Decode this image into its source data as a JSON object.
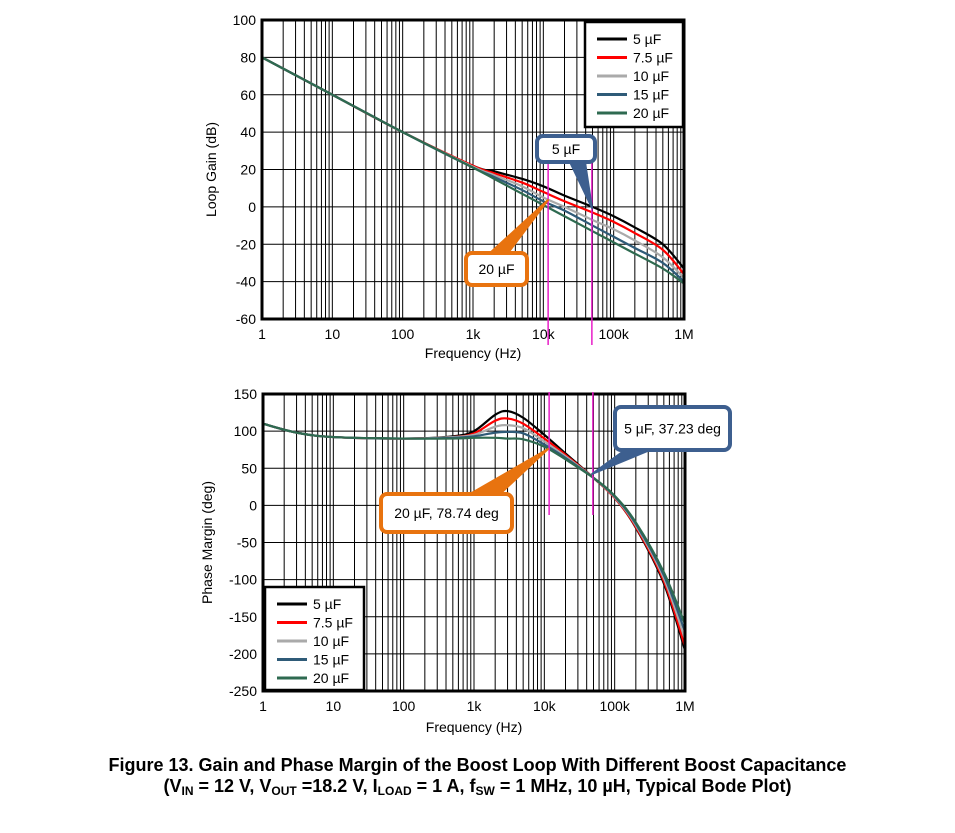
{
  "chart_data": [
    {
      "type": "line",
      "title": "Loop Gain",
      "xlabel": "Frequency (Hz)",
      "ylabel": "Loop Gain (dB)",
      "xscale": "log",
      "xlim": [
        1,
        1000000
      ],
      "ylim": [
        -60,
        100
      ],
      "xticks": [
        1,
        10,
        100,
        1000,
        10000,
        100000,
        1000000
      ],
      "xtick_labels": [
        "1",
        "10",
        "100",
        "1k",
        "10k",
        "100k",
        "1M"
      ],
      "yticks": [
        100,
        80,
        60,
        40,
        20,
        0,
        -20,
        -40,
        -60
      ],
      "ytick_labels": [
        "100",
        "80",
        "60",
        "40",
        "20",
        "0",
        "-20",
        "-40",
        "-60"
      ],
      "grid": true,
      "legend_position": "top-right",
      "x": [
        1,
        10,
        100,
        1000,
        2000,
        5000,
        10000,
        20000,
        50000,
        100000,
        200000,
        500000,
        1000000
      ],
      "series": [
        {
          "name": "5 µF",
          "color": "#000000",
          "values": [
            80,
            60,
            40,
            22,
            19,
            15,
            11,
            6,
            0,
            -5,
            -11,
            -20,
            -33
          ]
        },
        {
          "name": "7.5 µF",
          "color": "#ff0000",
          "values": [
            80,
            60,
            40,
            22,
            18,
            13,
            8,
            3,
            -3,
            -8,
            -14,
            -23,
            -36
          ]
        },
        {
          "name": "10 µF",
          "color": "#aaaaaa",
          "values": [
            80,
            60,
            40,
            21.5,
            17,
            11,
            5,
            0,
            -7,
            -12,
            -18,
            -27,
            -38
          ]
        },
        {
          "name": "15 µF",
          "color": "#2f5b78",
          "values": [
            80,
            60,
            40,
            21,
            16,
            9,
            3,
            -2,
            -10,
            -16,
            -22,
            -30,
            -40
          ]
        },
        {
          "name": "20 µF",
          "color": "#2e6a50",
          "values": [
            80,
            60,
            40,
            21,
            15,
            7,
            1,
            -5,
            -13,
            -19,
            -25,
            -33,
            -41
          ]
        }
      ],
      "markers": [
        11700,
        49000
      ],
      "annotations": [
        {
          "text": "5 µF",
          "x": 49000,
          "y": 0,
          "color": "#3d5f8f"
        },
        {
          "text": "20 µF",
          "x": 11700,
          "y": 4,
          "color": "#e8730f"
        }
      ]
    },
    {
      "type": "line",
      "title": "Phase Margin",
      "xlabel": "Frequency (Hz)",
      "ylabel": "Phase Margin (deg)",
      "xscale": "log",
      "xlim": [
        1,
        1000000
      ],
      "ylim": [
        -250,
        150
      ],
      "xticks": [
        1,
        10,
        100,
        1000,
        10000,
        100000,
        1000000
      ],
      "xtick_labels": [
        "1",
        "10",
        "100",
        "1k",
        "10k",
        "100k",
        "1M"
      ],
      "yticks": [
        150,
        100,
        50,
        0,
        -50,
        -100,
        -150,
        -200,
        -250
      ],
      "ytick_labels": [
        "150",
        "100",
        "50",
        "0",
        "-50",
        "-100",
        "-150",
        "-200",
        "-250"
      ],
      "grid": true,
      "legend_position": "bottom-left",
      "x": [
        1,
        3,
        10,
        100,
        500,
        1000,
        2000,
        3000,
        5000,
        10000,
        20000,
        50000,
        100000,
        200000,
        500000,
        1000000
      ],
      "series": [
        {
          "name": "5 µF",
          "color": "#000000",
          "values": [
            110,
            98,
            92,
            90,
            93,
            100,
            122,
            127,
            118,
            95,
            70,
            37,
            10,
            -30,
            -105,
            -195
          ]
        },
        {
          "name": "7.5 µF",
          "color": "#ff0000",
          "values": [
            110,
            98,
            92,
            90,
            92,
            97,
            114,
            117,
            110,
            90,
            68,
            37,
            10,
            -29,
            -102,
            -190
          ]
        },
        {
          "name": "10 µF",
          "color": "#aaaaaa",
          "values": [
            110,
            98,
            92,
            90,
            92,
            95,
            106,
            108,
            104,
            86,
            66,
            37,
            11,
            -27,
            -98,
            -180
          ]
        },
        {
          "name": "15 µF",
          "color": "#2f5b78",
          "values": [
            110,
            98,
            92,
            90,
            91,
            93,
            98,
            99,
            97,
            82,
            64,
            37,
            12,
            -25,
            -94,
            -170
          ]
        },
        {
          "name": "20 µF",
          "color": "#2e6a50",
          "values": [
            110,
            98,
            92,
            90,
            90,
            91,
            91,
            90,
            89,
            79,
            62,
            37,
            13,
            -23,
            -90,
            -160
          ]
        }
      ],
      "markers": [
        11700,
        49000
      ],
      "annotations": [
        {
          "text": "5 µF, 37.23 deg",
          "x": 49000,
          "y": 37.23,
          "color": "#3d5f8f"
        },
        {
          "text": "20 µF, 78.74 deg",
          "x": 11700,
          "y": 78.74,
          "color": "#e8730f"
        }
      ]
    }
  ],
  "caption": {
    "line1": "Figure 13.  Gain and Phase Margin of the Boost Loop With Different Boost Capacitance",
    "l2_open": "(V",
    "l2_in": "IN",
    "l2_a": " = 12 V, V",
    "l2_out": "OUT",
    "l2_b": " =18.2 V, I",
    "l2_load": "LOAD",
    "l2_c": " = 1 A, f",
    "l2_sw": "SW",
    "l2_d": " = 1 MHz, 10 µH, Typical Bode Plot)"
  }
}
